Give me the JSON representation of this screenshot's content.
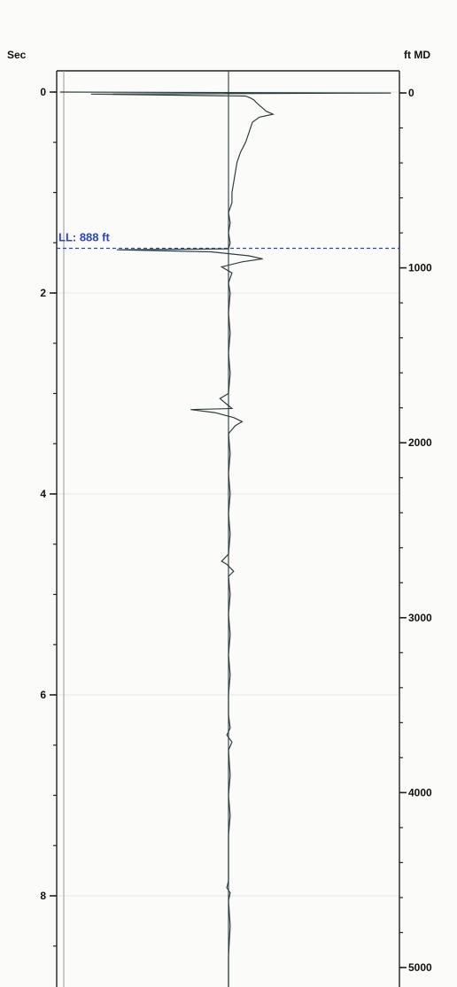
{
  "chart_data": {
    "type": "line",
    "title": "",
    "left_axis": {
      "label": "Sec",
      "range": [
        -0.1,
        9.1
      ],
      "major_ticks": [
        0,
        2,
        4,
        6,
        8
      ],
      "tick_labels": [
        "0",
        "2",
        "4",
        "6",
        "8"
      ],
      "minor_step": 0.5
    },
    "right_axis": {
      "label": "ft MD",
      "range": [
        0,
        5100
      ],
      "major_ticks": [
        0,
        1000,
        2000,
        3000,
        4000,
        5000
      ],
      "tick_labels": [
        "0",
        "1000",
        "2000",
        "3000",
        "4000",
        "5000"
      ],
      "minor_step": 200
    },
    "grid": "faint horizontal at major ticks",
    "marker": {
      "label": "LL: 888 ft",
      "depth": 888,
      "color": "#2a46c0"
    },
    "series": [
      {
        "color": "#2e3e3e",
        "baseline": 0,
        "points": [
          [
            0.0,
            -0.98
          ],
          [
            0.01,
            0.95
          ],
          [
            0.02,
            -0.8
          ],
          [
            0.04,
            0.1
          ],
          [
            0.06,
            0.13
          ],
          [
            0.08,
            0.15
          ],
          [
            0.1,
            0.16
          ],
          [
            0.13,
            0.18
          ],
          [
            0.16,
            0.2
          ],
          [
            0.19,
            0.22
          ],
          [
            0.22,
            0.26
          ],
          [
            0.25,
            0.18
          ],
          [
            0.3,
            0.14
          ],
          [
            0.4,
            0.12
          ],
          [
            0.5,
            0.1
          ],
          [
            0.6,
            0.07
          ],
          [
            0.7,
            0.05
          ],
          [
            0.8,
            0.04
          ],
          [
            0.9,
            0.03
          ],
          [
            1.0,
            0.02
          ],
          [
            1.1,
            0.02
          ],
          [
            1.2,
            0.0
          ],
          [
            1.3,
            0.01
          ],
          [
            1.4,
            0.0
          ],
          [
            1.5,
            0.01
          ],
          [
            1.56,
            0.0
          ],
          [
            1.57,
            -0.65
          ],
          [
            1.59,
            -0.1
          ],
          [
            1.63,
            0.12
          ],
          [
            1.66,
            0.2
          ],
          [
            1.69,
            0.08
          ],
          [
            1.74,
            -0.04
          ],
          [
            1.8,
            0.02
          ],
          [
            1.9,
            0.0
          ],
          [
            2.0,
            0.01
          ],
          [
            2.2,
            0.0
          ],
          [
            2.4,
            0.01
          ],
          [
            2.6,
            0.0
          ],
          [
            2.8,
            0.01
          ],
          [
            3.0,
            0.0
          ],
          [
            3.05,
            -0.05
          ],
          [
            3.15,
            0.02
          ],
          [
            3.16,
            -0.22
          ],
          [
            3.19,
            -0.08
          ],
          [
            3.24,
            0.03
          ],
          [
            3.28,
            0.08
          ],
          [
            3.32,
            0.04
          ],
          [
            3.4,
            0.0
          ],
          [
            3.6,
            0.01
          ],
          [
            3.8,
            0.0
          ],
          [
            4.0,
            0.01
          ],
          [
            4.2,
            0.0
          ],
          [
            4.4,
            0.01
          ],
          [
            4.6,
            0.0
          ],
          [
            4.67,
            -0.04
          ],
          [
            4.7,
            -0.01
          ],
          [
            4.77,
            0.03
          ],
          [
            4.82,
            0.0
          ],
          [
            5.0,
            0.01
          ],
          [
            5.2,
            0.0
          ],
          [
            5.4,
            0.01
          ],
          [
            5.6,
            0.0
          ],
          [
            5.8,
            0.01
          ],
          [
            6.0,
            0.0
          ],
          [
            6.2,
            0.0
          ],
          [
            6.33,
            0.01
          ],
          [
            6.4,
            -0.01
          ],
          [
            6.47,
            0.02
          ],
          [
            6.55,
            0.0
          ],
          [
            6.8,
            0.01
          ],
          [
            7.0,
            0.0
          ],
          [
            7.2,
            0.01
          ],
          [
            7.4,
            0.0
          ],
          [
            7.6,
            0.0
          ],
          [
            7.85,
            0.0
          ],
          [
            7.92,
            -0.01
          ],
          [
            7.97,
            0.01
          ],
          [
            8.05,
            0.0
          ],
          [
            8.3,
            0.01
          ],
          [
            8.6,
            0.0
          ],
          [
            8.9,
            0.0
          ],
          [
            9.1,
            0.0
          ]
        ]
      }
    ]
  }
}
